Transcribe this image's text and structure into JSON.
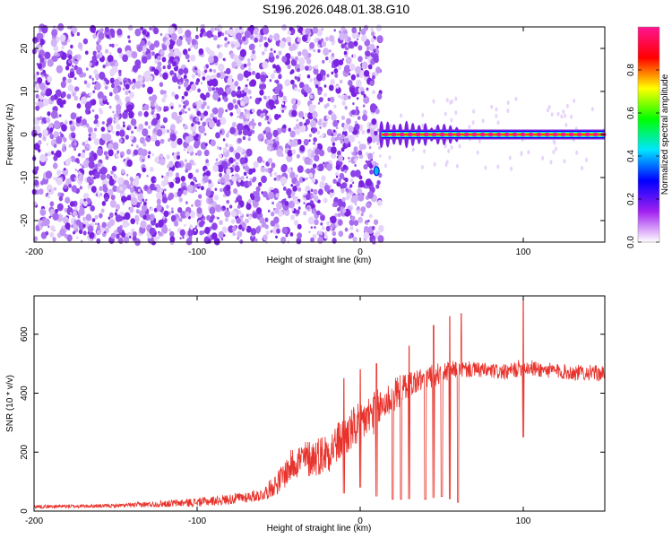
{
  "figure_title": "S196.2026.048.01.38.G10",
  "chart_data": [
    {
      "type": "heatmap",
      "xlabel": "Height of straight line (km)",
      "ylabel": "Frequency (Hz)",
      "xlim": [
        -200,
        150
      ],
      "ylim": [
        -25,
        25
      ],
      "xticks": [
        -200,
        -100,
        0,
        100
      ],
      "xtick_labels": [
        "-200",
        "-100",
        "0",
        "100"
      ],
      "yticks": [
        -20,
        -10,
        0,
        10,
        20
      ],
      "ytick_labels": [
        "-20",
        "-10",
        "0",
        "10",
        "20"
      ],
      "colorbar": {
        "label": "Normalized spectral amplitude",
        "range": [
          0,
          1
        ],
        "ticks": [
          0.0,
          0.2,
          0.4,
          0.6,
          0.8
        ],
        "tick_labels": [
          "0.0",
          "0.2",
          "0.4",
          "0.6",
          "0.8"
        ],
        "colors": [
          "#ffffff",
          "#a020f0",
          "#0000ff",
          "#00e5ff",
          "#00ff00",
          "#ffff00",
          "#ff0000",
          "#ff1493"
        ]
      },
      "regions": [
        {
          "name": "noise",
          "x_range": [
            -200,
            13
          ],
          "freq_range": [
            -25,
            25
          ],
          "amplitude_range": [
            0.0,
            0.2
          ]
        },
        {
          "name": "carrier",
          "x_range": [
            13,
            150
          ],
          "frequency": 0,
          "amplitude": 1.0
        },
        {
          "name": "isolated-point",
          "x": 10,
          "frequency": -8.5,
          "amplitude": 0.3
        }
      ]
    },
    {
      "type": "line",
      "xlabel": "Height of straight line (km)",
      "ylabel": "SNR (10 * v/v)",
      "xlim": [
        -200,
        150
      ],
      "ylim": [
        0,
        730
      ],
      "xticks": [
        -200,
        -100,
        0,
        100
      ],
      "xtick_labels": [
        "-200",
        "-100",
        "0",
        "100"
      ],
      "yticks": [
        0,
        200,
        400,
        600
      ],
      "ytick_labels": [
        "0",
        "200",
        "400",
        "600"
      ],
      "series": [
        {
          "name": "SNR",
          "color": "#e8322b",
          "x": [
            -200,
            -150,
            -120,
            -100,
            -80,
            -60,
            -50,
            -40,
            -30,
            -20,
            -10,
            0,
            10,
            20,
            30,
            40,
            50,
            60,
            70,
            80,
            90,
            100,
            110,
            120,
            130,
            140,
            150
          ],
          "y": [
            15,
            18,
            25,
            30,
            40,
            55,
            100,
            170,
            180,
            200,
            250,
            300,
            340,
            390,
            430,
            450,
            470,
            480,
            480,
            475,
            470,
            490,
            480,
            475,
            470,
            470,
            465
          ],
          "amp": [
            10,
            10,
            20,
            25,
            30,
            35,
            70,
            100,
            110,
            120,
            120,
            130,
            120,
            100,
            80,
            70,
            60,
            50,
            45,
            45,
            45,
            50,
            45,
            45,
            45,
            45,
            45
          ],
          "dips": [
            [
              -10,
              60
            ],
            [
              0,
              80
            ],
            [
              10,
              50
            ],
            [
              20,
              40
            ],
            [
              25,
              40
            ],
            [
              30,
              40
            ],
            [
              40,
              40
            ],
            [
              45,
              45
            ],
            [
              50,
              50
            ],
            [
              55,
              40
            ],
            [
              60,
              30
            ],
            [
              100,
              250
            ]
          ],
          "peaks": [
            [
              -10,
              450
            ],
            [
              0,
              480
            ],
            [
              10,
              500
            ],
            [
              30,
              560
            ],
            [
              45,
              630
            ],
            [
              55,
              660
            ],
            [
              62,
              670
            ],
            [
              100,
              720
            ]
          ]
        }
      ]
    }
  ]
}
